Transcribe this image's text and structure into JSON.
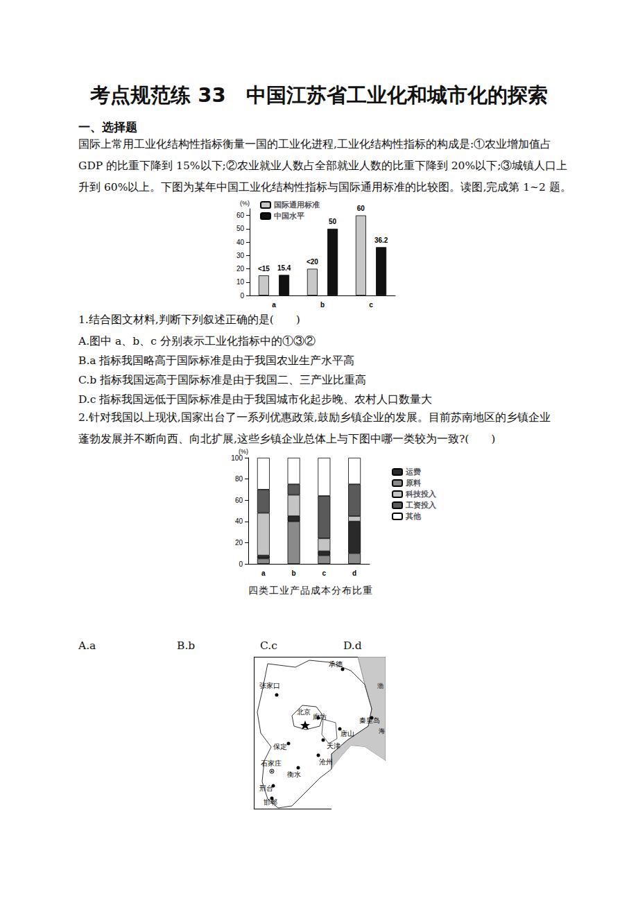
{
  "header": {
    "title": "考点规范练 33　中国江苏省工业化和城市化的探索"
  },
  "section": "一、选择题",
  "intro": [
    "国际上常用工业化结构性指标衡量一国的工业化进程,工业化结构性指标的构成是:①农业增加值占",
    "GDP 的比重下降到 15%以下;②农业就业人数占全部就业人数的比重下降到 20%以下;③城镇人口上",
    "升到 60%以上。下图为某年中国工业化结构性指标与国际通用标准的比较图。读图,完成第 1~2 题。"
  ],
  "questions": [
    {
      "number": "1.",
      "stem": [
        "结合图文材料,判断下列叙述正确的是(　　)"
      ],
      "options": [
        "A.图中 a、b、c 分别表示工业化指标中的①③②",
        "B.a 指标我国略高于国际标准是由于我国农业生产水平高",
        "C.b 指标我国远高于国际标准是由于我国二、三产业比重高",
        "D.c 指标我国远低于国际标准是由于我国城市化起步晚、农村人口数量大"
      ]
    },
    {
      "number": "2.",
      "stem": [
        "针对我国以上现状,国家出台了一系列优惠政策,鼓励乡镇企业的发展。目前苏南地区的乡镇企业",
        "蓬勃发展并不断向西、向北扩展,这些乡镇企业总体上与下图中哪一类较为一致?(　　)"
      ],
      "options": [
        "A.a",
        "B.b",
        "C.c",
        "D.d"
      ]
    }
  ],
  "chart_data": [
    {
      "type": "bar",
      "y_label": "(%)",
      "categories": [
        "a",
        "b",
        "c"
      ],
      "series": [
        {
          "name": "国际通用标准",
          "color": "#c8c8c8",
          "values": [
            15,
            20,
            60
          ],
          "value_labels": [
            "<15",
            "<20",
            "60"
          ]
        },
        {
          "name": "中国水平",
          "color": "#111111",
          "values": [
            15.4,
            50,
            36.2
          ]
        }
      ],
      "ylim": [
        0,
        65
      ],
      "yticks": [
        0,
        10,
        20,
        30,
        40,
        50,
        60
      ],
      "grid": false,
      "legend": "top-left",
      "data_labels": true
    },
    {
      "type": "bar",
      "title": "四类工业产品成本分布比重",
      "y_label": "(%)",
      "categories": [
        "a",
        "b",
        "c",
        "d"
      ],
      "series": [
        {
          "name": "原料",
          "color": "#8a8a8a",
          "values": [
            5,
            40,
            8,
            10
          ]
        },
        {
          "name": "运费",
          "color": "#2a2a2a",
          "values": [
            3,
            5,
            4,
            30
          ]
        },
        {
          "name": "科技投入",
          "color": "#c4c4c4",
          "values": [
            40,
            20,
            12,
            5
          ]
        },
        {
          "name": "工资投入",
          "color": "#5a5a5a",
          "values": [
            22,
            10,
            40,
            30
          ]
        },
        {
          "name": "其他",
          "color": "#ffffff",
          "values": [
            30,
            25,
            36,
            25
          ]
        }
      ],
      "legend_order": [
        "运费",
        "原料",
        "科技投入",
        "工资投入",
        "其他"
      ],
      "ylim": [
        0,
        100
      ],
      "yticks": [
        0,
        20,
        40,
        60,
        80,
        100
      ],
      "grid": false,
      "legend": "right",
      "stacked": true
    }
  ],
  "map": {
    "cities": [
      "张家口",
      "承德",
      "北京",
      "廊坊",
      "唐山",
      "秦皇岛",
      "保定",
      "天津",
      "石家庄",
      "沧州",
      "衡水",
      "邢台",
      "邯郸"
    ],
    "sea": [
      "渤",
      "海"
    ]
  }
}
